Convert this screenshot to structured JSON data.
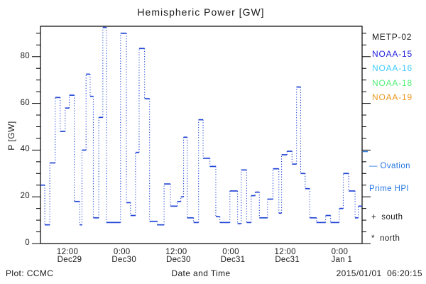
{
  "footer": {
    "credit": "Plot: CCMC",
    "timestamp": "2015/01/01  06:20:15"
  },
  "legend": {
    "satellites": [
      {
        "label": "METP-02",
        "color": "#1a1a1a"
      },
      {
        "label": "NOAA-15",
        "color": "#2222dd"
      },
      {
        "label": "NOAA-16",
        "color": "#44ccff"
      },
      {
        "label": "NOAA-18",
        "color": "#55ee77"
      },
      {
        "label": "NOAA-19",
        "color": "#ee9922"
      }
    ],
    "ovation_line1": "— Ovation",
    "ovation_line2": "Prime HPI",
    "ovation_color": "#2577e0",
    "south": "+  south",
    "north": "*  north"
  },
  "chart_data": {
    "type": "line",
    "style": "step-after",
    "title": "Hemispheric Power [GW]",
    "xlabel": "Date and Time",
    "ylabel": "P [GW]",
    "series_label": "Ovation Prime HPI",
    "line_color": "#2346d6",
    "frame_color": "#000000",
    "grid": "off",
    "legend_position": "right-outside",
    "x_unit": "hours since 2014-12-29 00:00",
    "xlim": [
      6.05,
      76.95
    ],
    "ylim": [
      0,
      93
    ],
    "x_major_ticks": [
      {
        "hours": 12,
        "time": "12:00",
        "date": "Dec29"
      },
      {
        "hours": 24,
        "time": "0:00",
        "date": "Dec30"
      },
      {
        "hours": 36,
        "time": "12:00",
        "date": "Dec30"
      },
      {
        "hours": 48,
        "time": "0:00",
        "date": "Dec31"
      },
      {
        "hours": 60,
        "time": "12:00",
        "date": "Dec31"
      },
      {
        "hours": 72,
        "time": "0:00",
        "date": "Jan 1"
      }
    ],
    "x_minor_step_hours": 2,
    "y_major_ticks": [
      0,
      20,
      40,
      60,
      80
    ],
    "y_minor_step": 5,
    "steps": [
      [
        6.05,
        25
      ],
      [
        7.0,
        8
      ],
      [
        8.1,
        34.5
      ],
      [
        9.3,
        62.5
      ],
      [
        10.4,
        48
      ],
      [
        11.5,
        58
      ],
      [
        12.4,
        63.5
      ],
      [
        13.5,
        18
      ],
      [
        14.7,
        8
      ],
      [
        15.2,
        40
      ],
      [
        16.1,
        72.5
      ],
      [
        17.0,
        63
      ],
      [
        17.7,
        11
      ],
      [
        18.9,
        54
      ],
      [
        19.8,
        92.5
      ],
      [
        20.6,
        9
      ],
      [
        23.7,
        90
      ],
      [
        25.0,
        17.5
      ],
      [
        25.9,
        12
      ],
      [
        27.0,
        39
      ],
      [
        27.8,
        83.5
      ],
      [
        29.0,
        62
      ],
      [
        30.1,
        9.5
      ],
      [
        31.8,
        8
      ],
      [
        33.3,
        25.5
      ],
      [
        34.7,
        16
      ],
      [
        36.2,
        18
      ],
      [
        37.0,
        20
      ],
      [
        37.6,
        45.5
      ],
      [
        38.4,
        11
      ],
      [
        39.8,
        9
      ],
      [
        40.9,
        53
      ],
      [
        41.9,
        36.5
      ],
      [
        43.4,
        33
      ],
      [
        44.7,
        11.5
      ],
      [
        45.6,
        9
      ],
      [
        47.8,
        22.5
      ],
      [
        49.5,
        8.5
      ],
      [
        50.3,
        31.5
      ],
      [
        51.5,
        9
      ],
      [
        52.5,
        20.5
      ],
      [
        53.4,
        22
      ],
      [
        54.3,
        11
      ],
      [
        56.1,
        19
      ],
      [
        57.3,
        32
      ],
      [
        58.6,
        13
      ],
      [
        59.2,
        38
      ],
      [
        60.4,
        39.5
      ],
      [
        61.5,
        34
      ],
      [
        62.5,
        67
      ],
      [
        63.4,
        30
      ],
      [
        64.4,
        23.5
      ],
      [
        65.4,
        11
      ],
      [
        66.9,
        9
      ],
      [
        68.9,
        12
      ],
      [
        70.0,
        9
      ],
      [
        71.9,
        15
      ],
      [
        72.8,
        30
      ],
      [
        74.0,
        22.5
      ],
      [
        75.4,
        11
      ],
      [
        76.1,
        16
      ]
    ]
  }
}
